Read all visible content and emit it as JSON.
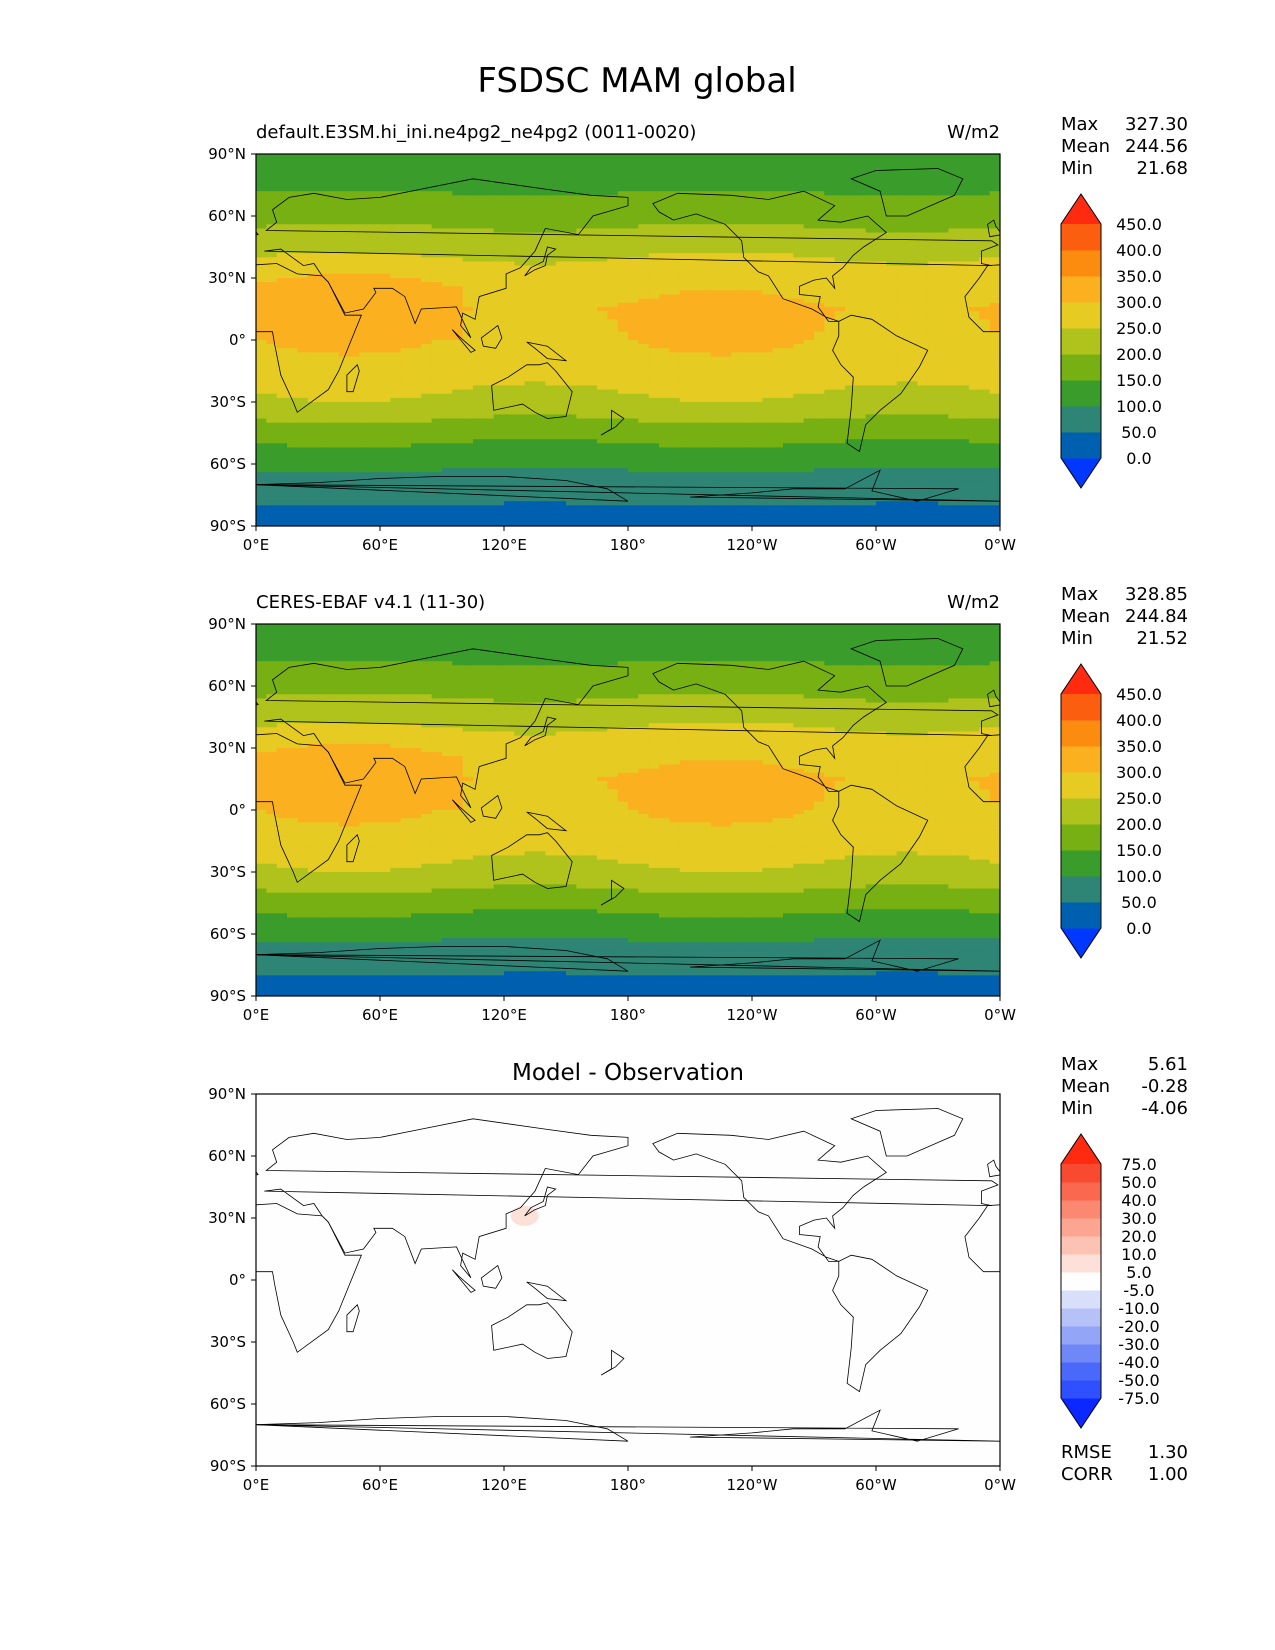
{
  "figure": {
    "title": "FSDSC MAM global"
  },
  "axes": {
    "lat_ticks": [
      "90°N",
      "60°N",
      "30°N",
      "0°",
      "30°S",
      "60°S",
      "90°S"
    ],
    "lon_ticks": [
      "0°E",
      "60°E",
      "120°E",
      "180°",
      "120°W",
      "60°W",
      "0°W"
    ]
  },
  "panels": [
    {
      "title": "default.E3SM.hi_ini.ne4pg2_ne4pg2 (0011-0020)",
      "units": "W/m2",
      "stats": [
        {
          "label": "Max",
          "value": "327.30"
        },
        {
          "label": "Mean",
          "value": "244.56"
        },
        {
          "label": "Min",
          "value": "21.68"
        }
      ],
      "colorbar_labels": [
        "450.0",
        "400.0",
        "350.0",
        "300.0",
        "250.0",
        "200.0",
        "150.0",
        "100.0",
        "50.0",
        "0.0"
      ]
    },
    {
      "title": "CERES-EBAF v4.1 (11-30)",
      "units": "W/m2",
      "stats": [
        {
          "label": "Max",
          "value": "328.85"
        },
        {
          "label": "Mean",
          "value": "244.84"
        },
        {
          "label": "Min",
          "value": "21.52"
        }
      ],
      "colorbar_labels": [
        "450.0",
        "400.0",
        "350.0",
        "300.0",
        "250.0",
        "200.0",
        "150.0",
        "100.0",
        "50.0",
        "0.0"
      ]
    },
    {
      "title": "Model - Observation",
      "units": "",
      "stats": [
        {
          "label": "Max",
          "value": "5.61"
        },
        {
          "label": "Mean",
          "value": "-0.28"
        },
        {
          "label": "Min",
          "value": "-4.06"
        }
      ],
      "colorbar_labels": [
        "75.0",
        "50.0",
        "40.0",
        "30.0",
        "20.0",
        "10.0",
        "5.0",
        "-5.0",
        "-10.0",
        "-20.0",
        "-30.0",
        "-40.0",
        "-50.0",
        "-75.0"
      ],
      "extra_stats": [
        {
          "label": "RMSE",
          "value": "1.30"
        },
        {
          "label": "CORR",
          "value": "1.00"
        }
      ]
    }
  ],
  "chart_data": [
    {
      "type": "heatmap",
      "title": "default.E3SM.hi_ini.ne4pg2_ne4pg2 (0011-0020)",
      "variable": "FSDSC",
      "season": "MAM",
      "units": "W/m2",
      "xlim": [
        0,
        360
      ],
      "ylim": [
        -90,
        90
      ],
      "contour_levels": [
        0,
        50,
        100,
        150,
        200,
        250,
        300,
        350,
        400,
        450
      ],
      "colors": [
        "#0038ff",
        "#0060b0",
        "#2e8575",
        "#3a9c2a",
        "#77b013",
        "#b0c21c",
        "#e6cb23",
        "#fbb020",
        "#fc8c10",
        "#fc5e10",
        "#ff2a10"
      ],
      "zonal_profile": {
        "lat": [
          -90,
          -75,
          -60,
          -45,
          -30,
          -15,
          0,
          15,
          30,
          45,
          60,
          75,
          90
        ],
        "value": [
          30,
          60,
          110,
          170,
          240,
          275,
          300,
          305,
          280,
          235,
          180,
          140,
          120
        ]
      },
      "max": 327.3,
      "mean": 244.56,
      "min": 21.68
    },
    {
      "type": "heatmap",
      "title": "CERES-EBAF v4.1 (11-30)",
      "variable": "FSDSC",
      "season": "MAM",
      "units": "W/m2",
      "xlim": [
        0,
        360
      ],
      "ylim": [
        -90,
        90
      ],
      "contour_levels": [
        0,
        50,
        100,
        150,
        200,
        250,
        300,
        350,
        400,
        450
      ],
      "colors": [
        "#0038ff",
        "#0060b0",
        "#2e8575",
        "#3a9c2a",
        "#77b013",
        "#b0c21c",
        "#e6cb23",
        "#fbb020",
        "#fc8c10",
        "#fc5e10",
        "#ff2a10"
      ],
      "zonal_profile": {
        "lat": [
          -90,
          -75,
          -60,
          -45,
          -30,
          -15,
          0,
          15,
          30,
          45,
          60,
          75,
          90
        ],
        "value": [
          30,
          60,
          110,
          170,
          240,
          275,
          300,
          305,
          280,
          235,
          180,
          140,
          120
        ]
      },
      "max": 328.85,
      "mean": 244.84,
      "min": 21.52
    },
    {
      "type": "heatmap",
      "title": "Model - Observation",
      "variable": "FSDSC",
      "season": "MAM",
      "xlim": [
        0,
        360
      ],
      "ylim": [
        -90,
        90
      ],
      "contour_levels": [
        -75,
        -50,
        -40,
        -30,
        -20,
        -10,
        -5,
        5,
        10,
        20,
        30,
        40,
        50,
        75
      ],
      "colors": [
        "#0a28ff",
        "#2e50ff",
        "#4a68fa",
        "#6f87f7",
        "#93a5f7",
        "#b6c1f7",
        "#d8dff8",
        "#fefefe",
        "#fde0d8",
        "#fcc3b4",
        "#fca590",
        "#fb8870",
        "#f9684f",
        "#f84a30",
        "#ff2a10"
      ],
      "field": "near zero everywhere except a weak positive patch near 30°N, 130°E",
      "anomaly": {
        "lat": 31,
        "lon": 130,
        "value": 5.61
      },
      "max": 5.61,
      "mean": -0.28,
      "min": -4.06,
      "rmse": 1.3,
      "corr": 1.0
    }
  ]
}
